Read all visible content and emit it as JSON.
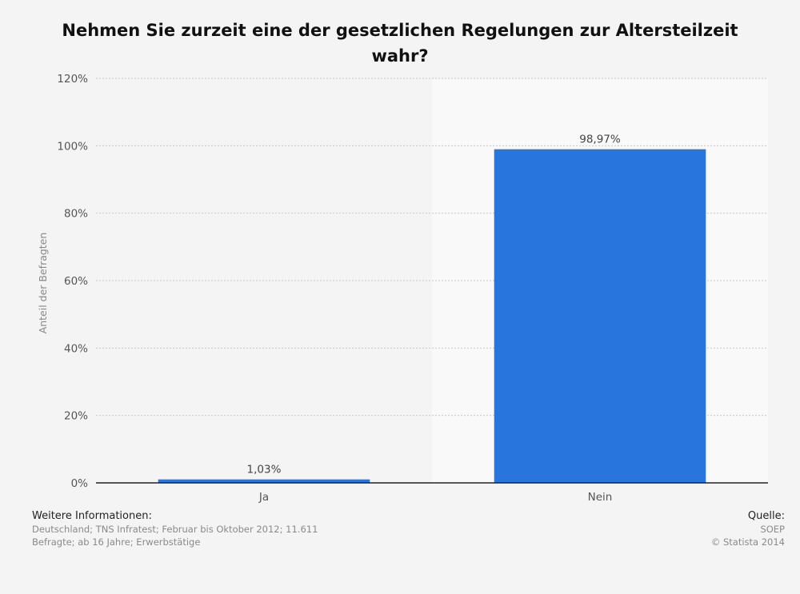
{
  "chart_data": {
    "type": "bar",
    "title": "Nehmen Sie zurzeit eine der gesetzlichen Regelungen zur Altersteilzeit wahr?",
    "categories": [
      "Ja",
      "Nein"
    ],
    "values": [
      1.03,
      98.97
    ],
    "value_labels": [
      "1,03%",
      "98,97%"
    ],
    "ylabel": "Anteil der Befragten",
    "ylim": [
      0,
      120
    ],
    "yticks": [
      0,
      20,
      40,
      60,
      80,
      100,
      120
    ],
    "ytick_labels": [
      "0%",
      "20%",
      "40%",
      "60%",
      "80%",
      "100%",
      "120%"
    ],
    "grid": true,
    "colors": {
      "bar": "#2876dd",
      "axis": "#222222",
      "grid": "#c8c8c8",
      "highlight_band": "#f9f9f9"
    }
  },
  "footer": {
    "info_heading": "Weitere Informationen:",
    "info_line1": "Deutschland; TNS Infratest; Februar bis Oktober 2012; 11.611",
    "info_line2": "Befragte; ab 16 Jahre; Erwerbstätige",
    "source_heading": "Quelle:",
    "source_line1": "SOEP",
    "source_line2": "© Statista 2014"
  }
}
